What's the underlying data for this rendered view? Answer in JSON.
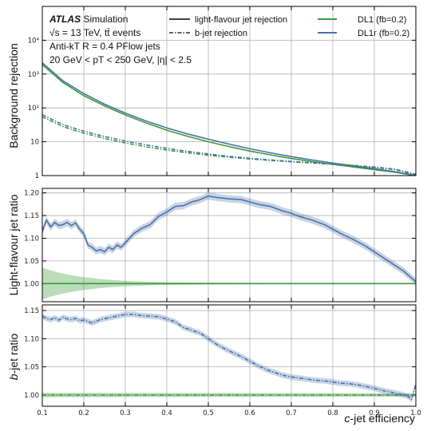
{
  "chart_data": {
    "type": "line",
    "x_label_italic": "c",
    "x_label_rest": "-jet efficiency",
    "x_range": [
      0.1,
      1.0
    ],
    "x_ticks": [
      0.1,
      0.2,
      0.3,
      0.4,
      0.5,
      0.6,
      0.7,
      0.8,
      0.9,
      1.0
    ],
    "colors": {
      "DL1": "#3a9a3a",
      "DL1r": "#4a72a8"
    },
    "annotations": {
      "atlas": "ATLAS",
      "simulation": "Simulation",
      "line2": "√s = 13 TeV, tt̄ events",
      "line3": "Anti-kT R = 0.4 PFlow jets",
      "line4": "20 GeV < pT < 250 GeV, |η| < 2.5"
    },
    "legend": {
      "solid_label": "light-flavour jet rejection",
      "dash_label": "b-jet rejection",
      "dl1": "DL1 (fb=0.2)",
      "dl1r": "DL1r (fb=0.2)"
    },
    "panels": [
      {
        "id": "rejection",
        "ylabel": "Background rejection",
        "yscale": "log",
        "ylim": [
          1,
          100000
        ],
        "yticks": [
          1,
          10,
          100,
          1000,
          10000
        ],
        "yticklabels": [
          "1",
          "10",
          "10²",
          "10³",
          "10⁴"
        ],
        "series": [
          {
            "name": "DL1 light-flavour jet rejection",
            "style": "solid",
            "color_key": "DL1",
            "x": [
              0.1,
              0.15,
              0.2,
              0.25,
              0.3,
              0.35,
              0.4,
              0.45,
              0.5,
              0.55,
              0.6,
              0.65,
              0.7,
              0.75,
              0.8,
              0.85,
              0.9,
              0.95,
              1.0
            ],
            "y": [
              1900,
              560,
              230,
              115,
              62,
              36,
              22,
              14.5,
              10,
              7.2,
              5.3,
              4.1,
              3.2,
              2.6,
              2.15,
              1.8,
              1.5,
              1.25,
              1.0
            ]
          },
          {
            "name": "DL1r light-flavour jet rejection",
            "style": "solid",
            "color_key": "DL1r",
            "x": [
              0.1,
              0.15,
              0.2,
              0.25,
              0.3,
              0.35,
              0.4,
              0.45,
              0.5,
              0.55,
              0.6,
              0.65,
              0.7,
              0.75,
              0.8,
              0.85,
              0.9,
              0.95,
              1.0
            ],
            "y": [
              2150,
              630,
              265,
              129,
              70,
              41,
              25.6,
              17,
              11.9,
              8.5,
              6.2,
              4.7,
              3.65,
              2.9,
              2.35,
              1.95,
              1.6,
              1.3,
              1.0
            ]
          },
          {
            "name": "DL1 b-jet rejection",
            "style": "dashdot",
            "color_key": "DL1",
            "x": [
              0.1,
              0.15,
              0.2,
              0.25,
              0.3,
              0.35,
              0.4,
              0.45,
              0.5,
              0.55,
              0.6,
              0.65,
              0.7,
              0.75,
              0.8,
              0.85,
              0.9,
              0.95,
              1.0
            ],
            "y": [
              55,
              28,
              18,
              12.5,
              9.2,
              7.1,
              5.7,
              4.7,
              4.0,
              3.5,
              3.1,
              2.8,
              2.55,
              2.35,
              2.15,
              1.95,
              1.75,
              1.5,
              1.05
            ]
          },
          {
            "name": "DL1r b-jet rejection",
            "style": "dashdot",
            "color_key": "DL1r",
            "x": [
              0.1,
              0.15,
              0.2,
              0.25,
              0.3,
              0.35,
              0.4,
              0.45,
              0.5,
              0.55,
              0.6,
              0.65,
              0.7,
              0.75,
              0.8,
              0.85,
              0.9,
              0.95,
              1.0
            ],
            "y": [
              63,
              32,
              20.5,
              14.3,
              10.5,
              8.1,
              6.4,
              5.2,
              4.35,
              3.7,
              3.25,
              2.9,
              2.62,
              2.4,
              2.2,
              2.0,
              1.8,
              1.55,
              1.1
            ]
          }
        ]
      },
      {
        "id": "light_ratio",
        "ylabel": "Light-flavour jet ratio",
        "yscale": "linear",
        "ylim": [
          0.96,
          1.21
        ],
        "yticks": [
          1.0,
          1.05,
          1.1,
          1.15,
          1.2
        ],
        "yticklabels": [
          "1.00",
          "1.05",
          "1.10",
          "1.15",
          "1.20"
        ],
        "band": {
          "color_key": "DL1",
          "x": [
            0.1,
            0.12,
            0.14,
            0.16,
            0.18,
            0.2,
            0.25,
            0.3,
            0.35,
            0.4,
            0.5,
            0.6,
            0.8,
            1.0
          ],
          "half_width": [
            0.035,
            0.029,
            0.024,
            0.02,
            0.017,
            0.014,
            0.009,
            0.006,
            0.004,
            0.003,
            0.002,
            0.0015,
            0.001,
            0.0008
          ]
        },
        "series": [
          {
            "name": "DL1 reference",
            "style": "solid",
            "color_key": "DL1",
            "x": [
              0.1,
              1.0
            ],
            "y": [
              1.0,
              1.0
            ]
          },
          {
            "name": "DL1r / DL1 light-flavour",
            "style": "solid",
            "color_key": "DL1r",
            "band_half_width": 0.008,
            "x": [
              0.1,
              0.11,
              0.12,
              0.13,
              0.14,
              0.15,
              0.16,
              0.17,
              0.18,
              0.19,
              0.2,
              0.21,
              0.22,
              0.23,
              0.24,
              0.25,
              0.26,
              0.27,
              0.28,
              0.29,
              0.3,
              0.32,
              0.34,
              0.36,
              0.38,
              0.4,
              0.42,
              0.44,
              0.46,
              0.48,
              0.5,
              0.52,
              0.55,
              0.58,
              0.6,
              0.62,
              0.65,
              0.68,
              0.7,
              0.72,
              0.75,
              0.78,
              0.8,
              0.82,
              0.85,
              0.88,
              0.9,
              0.92,
              0.95,
              0.97,
              0.99,
              1.0
            ],
            "y": [
              1.115,
              1.14,
              1.125,
              1.135,
              1.128,
              1.13,
              1.135,
              1.128,
              1.134,
              1.12,
              1.11,
              1.085,
              1.08,
              1.072,
              1.075,
              1.07,
              1.08,
              1.075,
              1.085,
              1.08,
              1.09,
              1.11,
              1.122,
              1.13,
              1.148,
              1.158,
              1.17,
              1.172,
              1.18,
              1.185,
              1.193,
              1.19,
              1.187,
              1.185,
              1.18,
              1.175,
              1.17,
              1.16,
              1.155,
              1.148,
              1.14,
              1.13,
              1.12,
              1.11,
              1.097,
              1.082,
              1.07,
              1.058,
              1.04,
              1.028,
              1.012,
              1.004
            ]
          }
        ]
      },
      {
        "id": "b_ratio",
        "ylabel_italic": "b",
        "ylabel_rest": "-jet ratio",
        "yscale": "linear",
        "ylim": [
          0.98,
          1.16
        ],
        "yticks": [
          1.0,
          1.05,
          1.1,
          1.15
        ],
        "yticklabels": [
          "1.00",
          "1.05",
          "1.10",
          "1.15"
        ],
        "band": {
          "color_key": "DL1",
          "x": [
            0.1,
            1.0
          ],
          "half_width": [
            0.004,
            0.003
          ]
        },
        "series": [
          {
            "name": "DL1 reference",
            "style": "dashdot",
            "color_key": "DL1",
            "x": [
              0.1,
              1.0
            ],
            "y": [
              1.0,
              1.0
            ]
          },
          {
            "name": "DL1r / DL1 b-jet",
            "style": "dashdot",
            "color_key": "DL1r",
            "band_half_width": 0.005,
            "x": [
              0.1,
              0.11,
              0.12,
              0.13,
              0.14,
              0.15,
              0.16,
              0.17,
              0.18,
              0.19,
              0.2,
              0.22,
              0.24,
              0.26,
              0.28,
              0.3,
              0.32,
              0.34,
              0.36,
              0.38,
              0.4,
              0.42,
              0.44,
              0.46,
              0.48,
              0.5,
              0.52,
              0.54,
              0.56,
              0.58,
              0.6,
              0.62,
              0.64,
              0.66,
              0.68,
              0.7,
              0.72,
              0.74,
              0.76,
              0.78,
              0.8,
              0.82,
              0.84,
              0.86,
              0.88,
              0.9,
              0.92,
              0.94,
              0.96,
              0.97,
              0.98,
              0.99,
              1.0
            ],
            "y": [
              1.14,
              1.136,
              1.134,
              1.137,
              1.133,
              1.138,
              1.135,
              1.134,
              1.136,
              1.132,
              1.133,
              1.128,
              1.134,
              1.137,
              1.14,
              1.143,
              1.143,
              1.141,
              1.14,
              1.139,
              1.135,
              1.13,
              1.12,
              1.115,
              1.11,
              1.1,
              1.09,
              1.082,
              1.075,
              1.068,
              1.06,
              1.052,
              1.045,
              1.04,
              1.035,
              1.032,
              1.03,
              1.028,
              1.026,
              1.025,
              1.023,
              1.021,
              1.02,
              1.018,
              1.015,
              1.012,
              1.008,
              1.005,
              1.002,
              1.0,
              0.998,
              0.992,
              1.02
            ]
          }
        ]
      }
    ]
  }
}
